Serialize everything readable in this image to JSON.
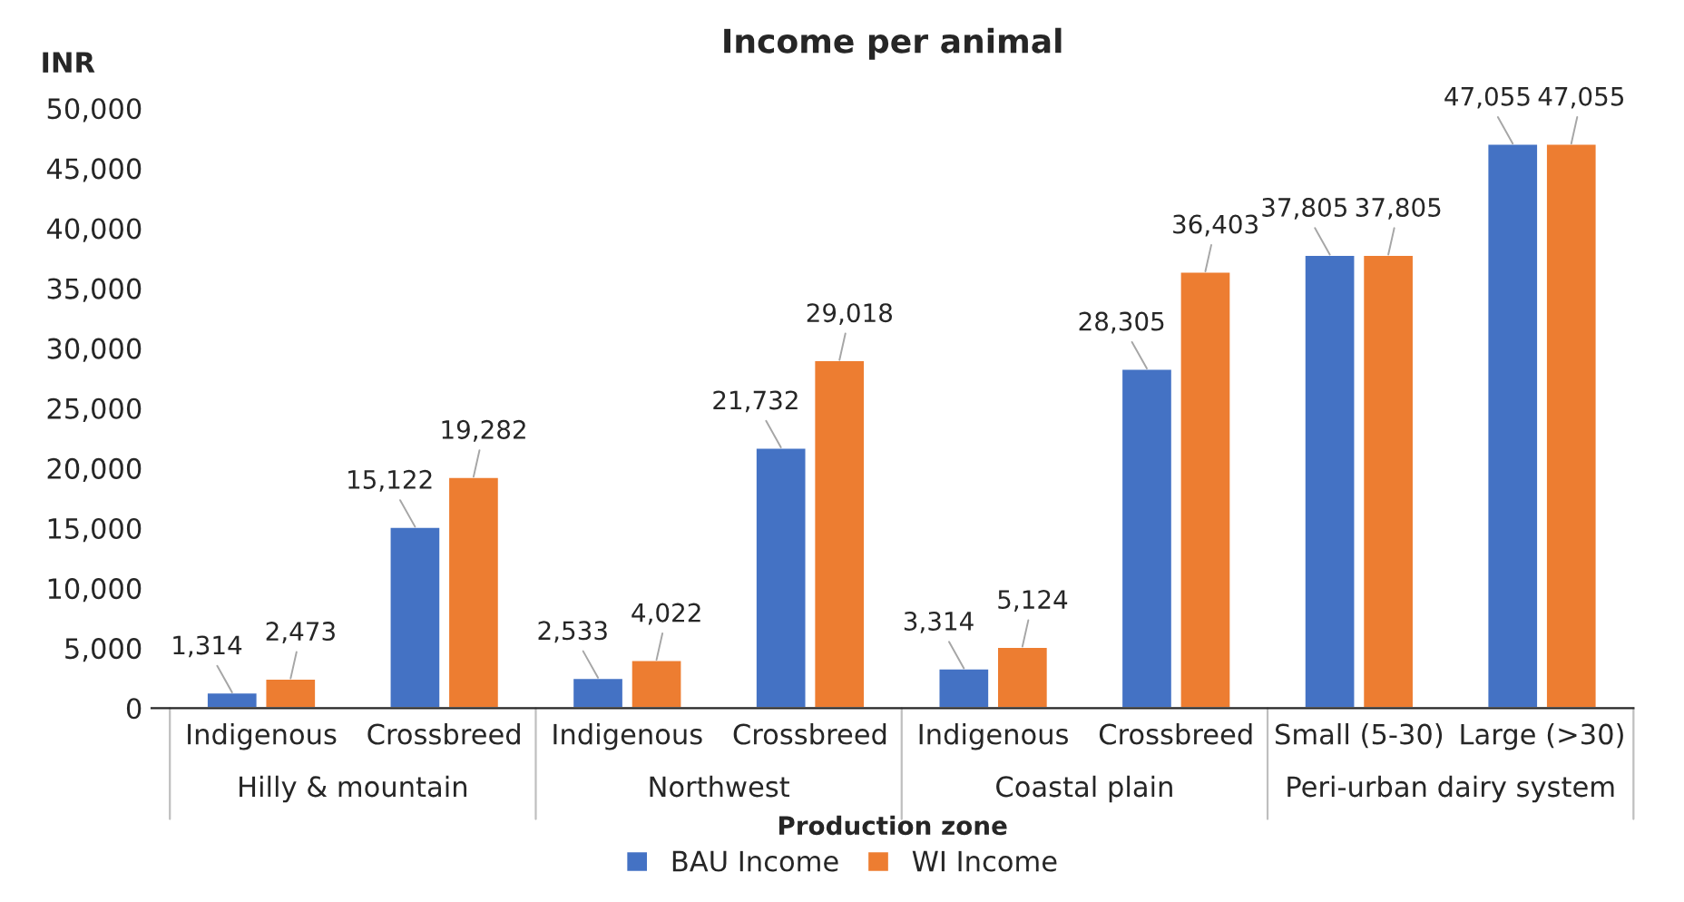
{
  "chart_data": {
    "type": "bar",
    "title": "Income per animal",
    "ylabel": "INR",
    "xlabel": "Production zone",
    "categories": [
      "Indigenous",
      "Crossbreed",
      "Indigenous",
      "Crossbreed",
      "Indigenous",
      "Crossbreed",
      "Small (5-30)",
      "Large (>30)"
    ],
    "series": [
      {
        "name": "BAU Income",
        "color": "#4472c4",
        "values": [
          1314,
          15122,
          2533,
          21732,
          3314,
          28305,
          37805,
          47055
        ],
        "value_labels": [
          "1,314",
          "15,122",
          "2,533",
          "21,732",
          "3,314",
          "28,305",
          "37,805",
          "47,055"
        ]
      },
      {
        "name": "WI Income",
        "color": "#ed7d31",
        "values": [
          2473,
          19282,
          4022,
          29018,
          5124,
          36403,
          37805,
          47055
        ],
        "value_labels": [
          "2,473",
          "19,282",
          "4,022",
          "29,018",
          "5,124",
          "36,403",
          "37,805",
          "47,055"
        ]
      }
    ],
    "annotations": [
      "Hilly & mountain",
      "Northwest",
      "Coastal plain",
      "Peri-urban dairy system"
    ],
    "ylim": [
      0,
      50000
    ],
    "yticks": [
      0,
      {
        "value": 5000,
        "label": "5,000"
      },
      {
        "value": 10000,
        "label": "10,000"
      },
      {
        "value": 15000,
        "label": "15,000"
      },
      {
        "value": 20000,
        "label": "20,000"
      },
      {
        "value": 25000,
        "label": "25,000"
      },
      {
        "value": 30000,
        "label": "30,000"
      },
      {
        "value": 35000,
        "label": "35,000"
      },
      {
        "value": 40000,
        "label": "40,000"
      },
      {
        "value": 45000,
        "label": "45,000"
      },
      {
        "value": 50000,
        "label": "50,000"
      }
    ],
    "grid": false,
    "legend": "bottom"
  }
}
